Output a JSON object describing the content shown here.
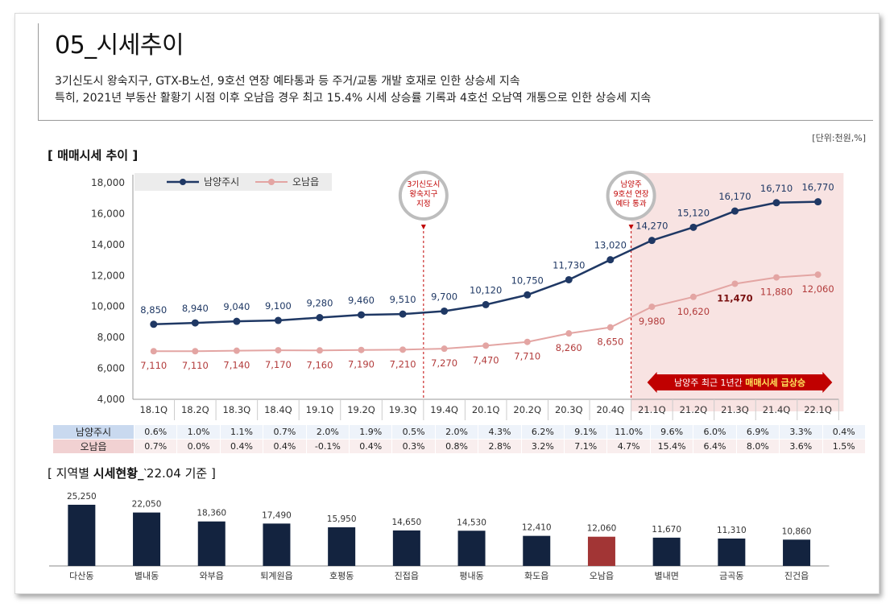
{
  "header": {
    "title": "05_시세추이",
    "desc_line1": "3기신도시 왕숙지구, GTX-B노선, 9호선 연장 예타통과 등 주거/교통 개발 호재로 인한 상승세 지속",
    "desc_line2": "특히, 2021년 부동산 활황기 시점 이후 오남읍 경우 최고 15.4% 시세 상승률 기록과 4호선 오남역 개통으로 인한 상승세 지속"
  },
  "unit": "[단위:천원,%]",
  "section1_title": "[ 매매시세 추이 ]",
  "section2_title_prefix": "[ 지역별 ",
  "section2_title_bold": "시세현황_",
  "section2_title_suffix": "‵22.04 기준 ]",
  "colors": {
    "navy": "#1f3864",
    "pink": "#e3a5a3",
    "red": "#c00000",
    "highlight": "#f8e3e2",
    "bar": "#13233f",
    "bar_hl": "#a23535"
  },
  "rates": {
    "labels": [
      "남양주시",
      "오남읍"
    ],
    "namyangju": [
      "0.6%",
      "1.0%",
      "1.1%",
      "0.7%",
      "2.0%",
      "1.9%",
      "0.5%",
      "2.0%",
      "4.3%",
      "6.2%",
      "9.1%",
      "11.0%",
      "9.6%",
      "6.0%",
      "6.9%",
      "3.3%",
      "0.4%"
    ],
    "onam": [
      "0.7%",
      "0.0%",
      "0.4%",
      "0.4%",
      "-0.1%",
      "0.4%",
      "0.3%",
      "0.8%",
      "2.8%",
      "3.2%",
      "7.1%",
      "4.7%",
      "15.4%",
      "6.4%",
      "8.0%",
      "3.6%",
      "1.5%"
    ]
  },
  "chart_data": [
    {
      "type": "line",
      "categories": [
        "18.1Q",
        "18.2Q",
        "18.3Q",
        "18.4Q",
        "19.1Q",
        "19.2Q",
        "19.3Q",
        "19.4Q",
        "20.1Q",
        "20.2Q",
        "20.3Q",
        "20.4Q",
        "21.1Q",
        "21.2Q",
        "21.3Q",
        "21.4Q",
        "22.1Q"
      ],
      "series": [
        {
          "name": "남양주시",
          "values": [
            8850,
            8940,
            9040,
            9100,
            9280,
            9460,
            9510,
            9700,
            10120,
            10750,
            11730,
            13020,
            14270,
            15120,
            16170,
            16710,
            16770
          ],
          "labels": [
            "8,850",
            "8,940",
            "9,040",
            "9,100",
            "9,280",
            "9,460",
            "9,510",
            "9,700",
            "10,120",
            "10,750",
            "11,730",
            "13,020",
            "14,270",
            "15,120",
            "16,170",
            "16,710",
            "16,770"
          ]
        },
        {
          "name": "오남읍",
          "values": [
            7110,
            7110,
            7140,
            7170,
            7160,
            7190,
            7210,
            7270,
            7470,
            7710,
            8260,
            8650,
            9980,
            10620,
            11470,
            11880,
            12060
          ],
          "labels": [
            "7,110",
            "7,110",
            "7,140",
            "7,170",
            "7,160",
            "7,190",
            "7,210",
            "7,270",
            "7,470",
            "7,710",
            "8,260",
            "8,650",
            "9,980",
            "10,620",
            "11,470",
            "11,880",
            "12,060"
          ]
        }
      ],
      "ylim": [
        4000,
        18000
      ],
      "yticks": [
        "4,000",
        "6,000",
        "8,000",
        "10,000",
        "12,000",
        "14,000",
        "16,000",
        "18,000"
      ],
      "legend": "top-left",
      "annotations": [
        {
          "category_index": 7,
          "lines": [
            "3기신도시",
            "왕숙지구",
            "지정"
          ]
        },
        {
          "category_index": 12,
          "lines": [
            "남양주",
            "9호선 연장",
            "예타 통과"
          ]
        }
      ],
      "highlight_banner": {
        "from_index": 12,
        "text_prefix": "남양주 최근 1년간 ",
        "text_bold": "매매시세 급상승"
      }
    },
    {
      "type": "bar",
      "categories": [
        "다산동",
        "별내동",
        "와부읍",
        "퇴계원읍",
        "호평동",
        "진접읍",
        "평내동",
        "화도읍",
        "오남읍",
        "별내면",
        "금곡동",
        "진건읍"
      ],
      "values": [
        25250,
        22050,
        18360,
        17490,
        15950,
        14650,
        14530,
        12410,
        12060,
        11670,
        11310,
        10860
      ],
      "labels": [
        "25,250",
        "22,050",
        "18,360",
        "17,490",
        "15,950",
        "14,650",
        "14,530",
        "12,410",
        "12,060",
        "11,670",
        "11,310",
        "10,860"
      ],
      "highlight_index": 8
    }
  ]
}
